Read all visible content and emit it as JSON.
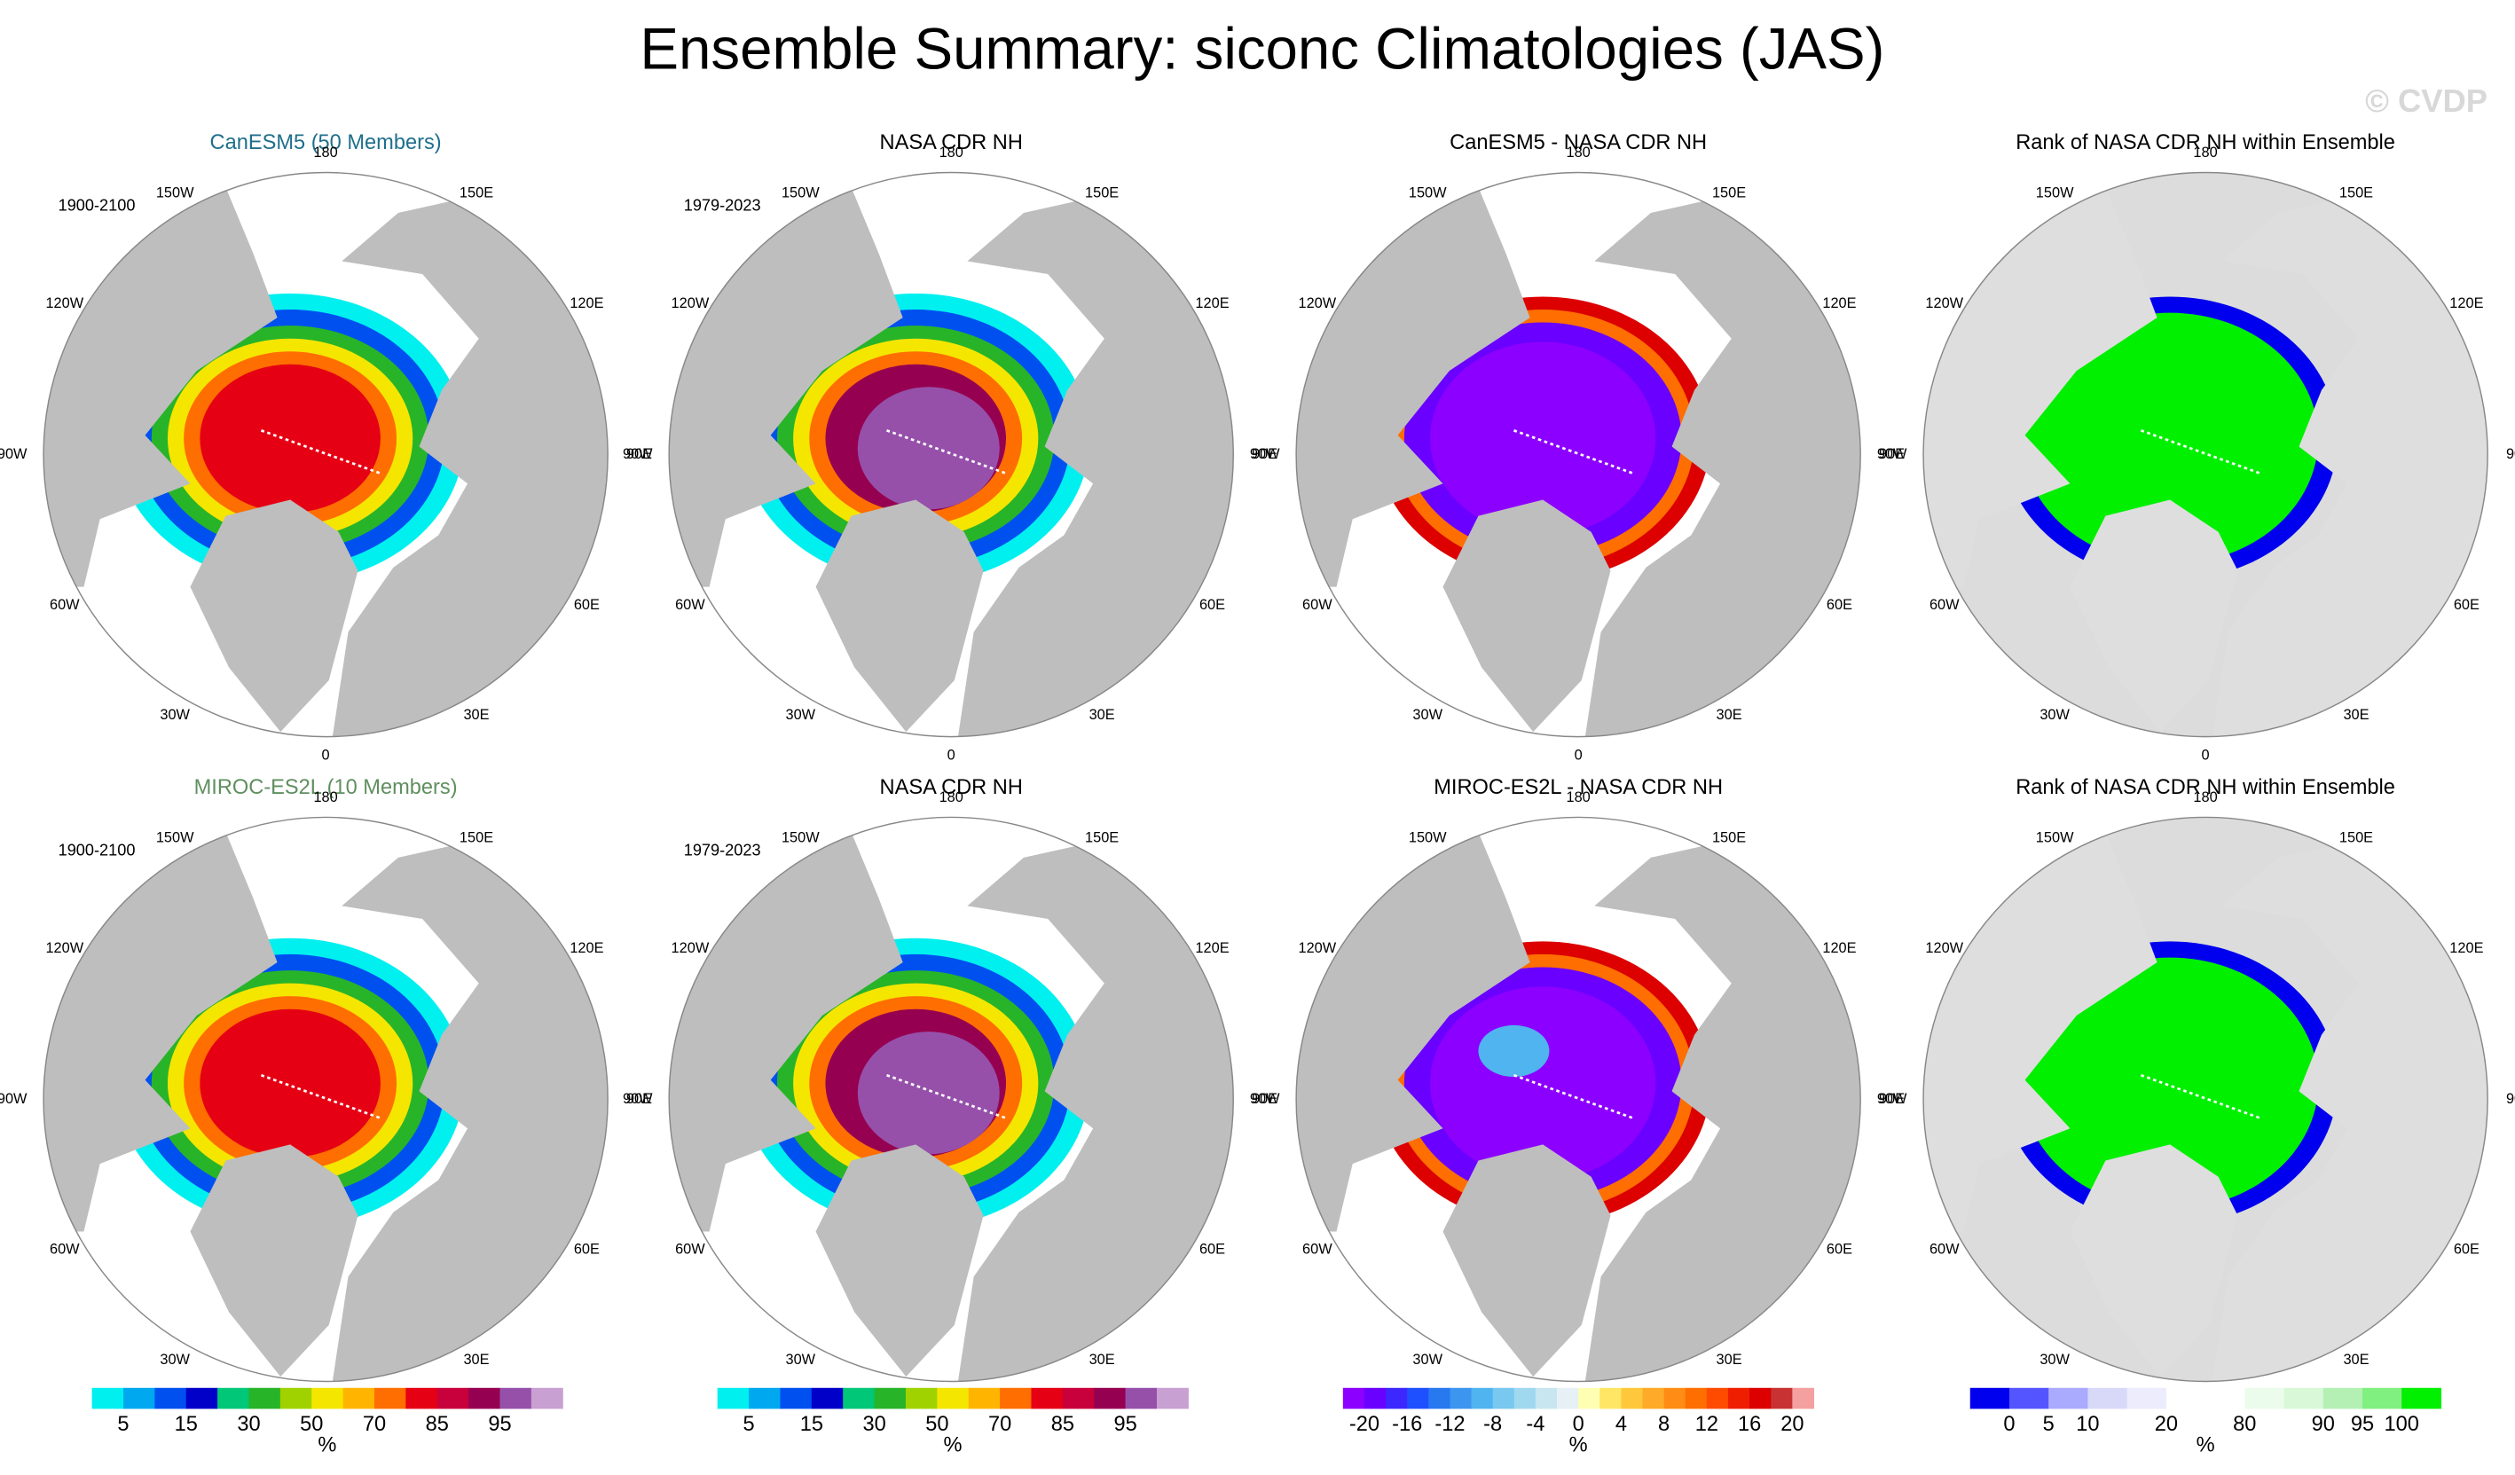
{
  "title": "Ensemble Summary: siconc Climatologies (JAS)",
  "watermark": "© CVDP",
  "longitude_labels": [
    "180",
    "150E",
    "120E",
    "90E",
    "60E",
    "30E",
    "0",
    "30W",
    "60W",
    "90W",
    "120W",
    "150W"
  ],
  "panels": [
    {
      "title": "CanESM5 (50 Members)",
      "title_color": "#1f6f8b",
      "period": "1900-2100",
      "kind": "concentration"
    },
    {
      "title": "NASA CDR NH",
      "title_color": "#000000",
      "period": "1979-2023",
      "kind": "concentration"
    },
    {
      "title": "CanESM5 - NASA CDR NH",
      "title_color": "#000000",
      "kind": "difference"
    },
    {
      "title": "Rank of NASA CDR NH within Ensemble",
      "title_color": "#000000",
      "kind": "rank"
    },
    {
      "title": "MIROC-ES2L (10 Members)",
      "title_color": "#5f8f5f",
      "period": "1900-2100",
      "kind": "concentration"
    },
    {
      "title": "NASA CDR NH",
      "title_color": "#000000",
      "period": "1979-2023",
      "kind": "concentration"
    },
    {
      "title": "MIROC-ES2L - NASA CDR NH",
      "title_color": "#000000",
      "kind": "difference"
    },
    {
      "title": "Rank of NASA CDR NH within Ensemble",
      "title_color": "#000000",
      "kind": "rank"
    }
  ],
  "colorbars": [
    {
      "colors": [
        "#00f0f0",
        "#00a8f0",
        "#0050f0",
        "#0000c8",
        "#00c878",
        "#28b428",
        "#a0d200",
        "#f5e600",
        "#ffb400",
        "#ff6e00",
        "#e60014",
        "#c8003c",
        "#960050",
        "#9650aa",
        "#c8a0d2"
      ],
      "labels": [
        5,
        null,
        15,
        null,
        30,
        null,
        50,
        null,
        70,
        null,
        85,
        null,
        95,
        null
      ],
      "units": "%"
    },
    {
      "colors": [
        "#00f0f0",
        "#00a8f0",
        "#0050f0",
        "#0000c8",
        "#00c878",
        "#28b428",
        "#a0d200",
        "#f5e600",
        "#ffb400",
        "#ff6e00",
        "#e60014",
        "#c8003c",
        "#960050",
        "#9650aa",
        "#c8a0d2"
      ],
      "labels": [
        5,
        null,
        15,
        null,
        30,
        null,
        50,
        null,
        70,
        null,
        85,
        null,
        95,
        null
      ],
      "units": "%"
    },
    {
      "colors": [
        "#8c00ff",
        "#6a00ff",
        "#3c28ff",
        "#1e50ff",
        "#2878f0",
        "#3c96f0",
        "#50b4f0",
        "#78c8f0",
        "#a0d8f0",
        "#c8e6f0",
        "#e6f0f5",
        "#ffffb4",
        "#ffe664",
        "#ffc83c",
        "#ffaa28",
        "#ff8c14",
        "#ff6e00",
        "#ff4b00",
        "#f01e00",
        "#dc0000",
        "#c83232",
        "#f5a0a0"
      ],
      "labels": [
        -20,
        null,
        -16,
        null,
        -12,
        null,
        -8,
        null,
        -4,
        null,
        0,
        null,
        4,
        null,
        8,
        null,
        12,
        null,
        16,
        null,
        20
      ],
      "units": "%"
    },
    {
      "colors": [
        "#0000ee",
        "#5555ff",
        "#aaaaff",
        "#d8d8f8",
        "#ececfc",
        "#ffffff",
        "#ffffff",
        "#ecfcec",
        "#d8f8d8",
        "#b4f0b4",
        "#80f080",
        "#00f000"
      ],
      "labels": [
        0,
        5,
        10,
        null,
        20,
        null,
        80,
        null,
        90,
        95,
        100
      ],
      "units": "%"
    }
  ]
}
